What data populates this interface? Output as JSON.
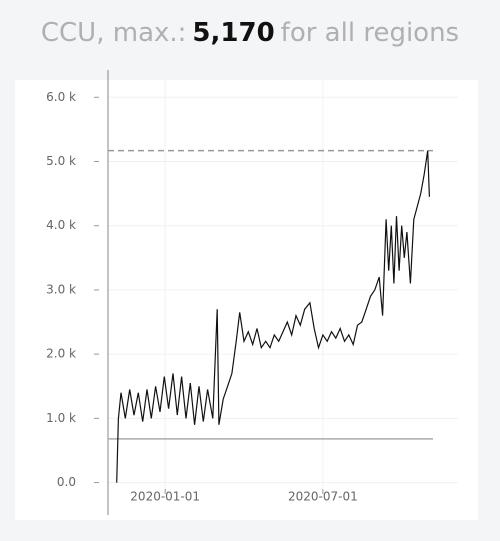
{
  "chart_data": {
    "type": "line",
    "title": [
      "CCU, max.:",
      "5,170",
      "for all regions"
    ],
    "x": [
      "2019-11-06",
      "2019-11-08",
      "2019-11-11",
      "2019-11-16",
      "2019-11-21",
      "2019-11-26",
      "2019-12-01",
      "2019-12-06",
      "2019-12-11",
      "2019-12-16",
      "2019-12-21",
      "2019-12-26",
      "2019-12-31",
      "2020-01-05",
      "2020-01-10",
      "2020-01-15",
      "2020-01-20",
      "2020-01-25",
      "2020-01-30",
      "2020-02-04",
      "2020-02-09",
      "2020-02-14",
      "2020-02-19",
      "2020-02-25",
      "2020-03-01",
      "2020-03-03",
      "2020-03-08",
      "2020-03-13",
      "2020-03-18",
      "2020-03-23",
      "2020-03-27",
      "2020-04-01",
      "2020-04-06",
      "2020-04-11",
      "2020-04-16",
      "2020-04-21",
      "2020-04-26",
      "2020-05-01",
      "2020-05-06",
      "2020-05-11",
      "2020-05-16",
      "2020-05-21",
      "2020-05-26",
      "2020-05-31",
      "2020-06-05",
      "2020-06-10",
      "2020-06-16",
      "2020-06-21",
      "2020-06-26",
      "2020-07-01",
      "2020-07-06",
      "2020-07-11",
      "2020-07-16",
      "2020-07-21",
      "2020-07-26",
      "2020-07-31",
      "2020-08-05",
      "2020-08-10",
      "2020-08-15",
      "2020-08-20",
      "2020-08-25",
      "2020-08-30",
      "2020-09-04",
      "2020-09-08",
      "2020-09-12",
      "2020-09-15",
      "2020-09-18",
      "2020-09-21",
      "2020-09-24",
      "2020-09-27",
      "2020-09-30",
      "2020-10-03",
      "2020-10-06",
      "2020-10-10",
      "2020-10-14",
      "2020-10-18",
      "2020-10-22",
      "2020-10-26",
      "2020-10-30",
      "2020-11-01"
    ],
    "values": [
      0,
      1000,
      1400,
      1000,
      1450,
      1050,
      1400,
      950,
      1450,
      1000,
      1500,
      1100,
      1650,
      1150,
      1700,
      1050,
      1650,
      1000,
      1550,
      900,
      1500,
      950,
      1450,
      1000,
      2700,
      900,
      1300,
      1500,
      1700,
      2200,
      2650,
      2200,
      2350,
      2150,
      2400,
      2100,
      2200,
      2100,
      2300,
      2200,
      2350,
      2500,
      2300,
      2600,
      2450,
      2700,
      2800,
      2400,
      2100,
      2300,
      2200,
      2350,
      2250,
      2400,
      2200,
      2300,
      2150,
      2450,
      2500,
      2700,
      2900,
      3000,
      3200,
      2600,
      4100,
      3300,
      4000,
      3100,
      4150,
      3300,
      4000,
      3500,
      3900,
      3100,
      4100,
      4300,
      4500,
      4800,
      5170,
      4450
    ],
    "color": "#111111",
    "reference_lines": [
      {
        "value": 5170,
        "style": "dashed",
        "color": "#999999"
      },
      {
        "value": 680,
        "style": "solid",
        "color": "#aaaaaa"
      }
    ],
    "xlim": [
      "2019-10-27",
      "2020-12-04"
    ],
    "xticks": [
      "2020-01-01",
      "2020-07-01"
    ],
    "ylim": [
      -100,
      6300
    ],
    "yticks": [
      {
        "value": 0,
        "label": "0.0"
      },
      {
        "value": 1000,
        "label": "1.0 k"
      },
      {
        "value": 2000,
        "label": "2.0 k"
      },
      {
        "value": 3000,
        "label": "3.0 k"
      },
      {
        "value": 4000,
        "label": "4.0 k"
      },
      {
        "value": 5000,
        "label": "5.0 k"
      },
      {
        "value": 6000,
        "label": "6.0 k"
      }
    ],
    "grid": true
  }
}
